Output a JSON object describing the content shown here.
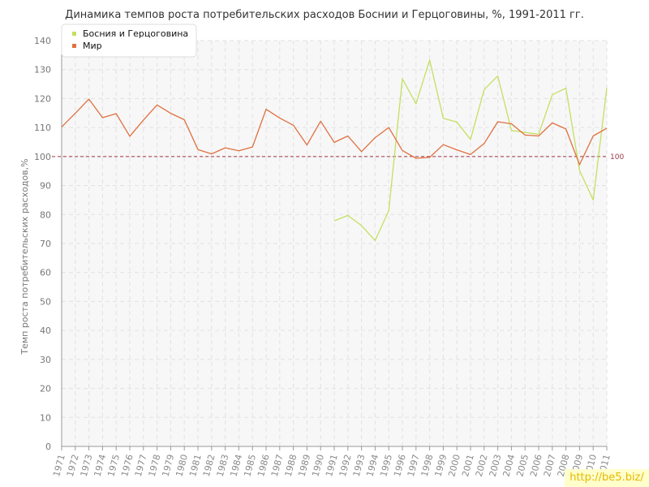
{
  "watermark": "http://be5.biz/",
  "chart_data": {
    "type": "line",
    "title": "Динамика темпов роста потребительских расходов Боснии и Герцоговины, %, 1991-2011 гг.",
    "xlabel": "",
    "ylabel": "Темп роста потребительских расходов,%",
    "ylim": [
      0,
      140
    ],
    "y_ticks": [
      "0",
      "10",
      "20",
      "30",
      "40",
      "50",
      "60",
      "70",
      "80",
      "90",
      "100",
      "110",
      "120",
      "130",
      "140"
    ],
    "categories": [
      "1971",
      "1972",
      "1973",
      "1974",
      "1975",
      "1976",
      "1977",
      "1978",
      "1979",
      "1980",
      "1981",
      "1982",
      "1983",
      "1984",
      "1985",
      "1986",
      "1987",
      "1988",
      "1989",
      "1990",
      "1991",
      "1992",
      "1993",
      "1994",
      "1995",
      "1996",
      "1997",
      "1998",
      "1999",
      "2000",
      "2001",
      "2002",
      "2003",
      "2004",
      "2005",
      "2006",
      "2007",
      "2008",
      "2009",
      "2010",
      "2011"
    ],
    "grid": true,
    "legend_position": "top-left",
    "reference_line": {
      "value": 100,
      "label": "100",
      "color": "#a23344"
    },
    "series": [
      {
        "name": "Босния и Герцоговина",
        "color": "#c3e060",
        "values": [
          null,
          null,
          null,
          null,
          null,
          null,
          null,
          null,
          null,
          null,
          null,
          null,
          null,
          null,
          null,
          null,
          null,
          null,
          null,
          null,
          77.8,
          79.7,
          76.2,
          71.0,
          81.3,
          126.8,
          118.2,
          133.3,
          113.2,
          111.9,
          105.9,
          123.1,
          127.8,
          109.0,
          108.3,
          107.7,
          121.3,
          123.6,
          95.2,
          85.0,
          123.6
        ]
      },
      {
        "name": "Мир",
        "color": "#e07040",
        "values": [
          110.2,
          114.9,
          119.8,
          113.4,
          114.8,
          107.0,
          112.6,
          117.8,
          114.9,
          112.7,
          102.4,
          100.9,
          103.0,
          102.0,
          103.3,
          116.3,
          113.3,
          110.8,
          104.0,
          112.2,
          104.9,
          107.1,
          101.7,
          106.5,
          110.0,
          102.1,
          99.4,
          99.7,
          104.1,
          102.3,
          100.7,
          104.5,
          112.0,
          111.3,
          107.4,
          107.1,
          111.6,
          109.5,
          97.2,
          107.1,
          109.8
        ]
      }
    ]
  }
}
